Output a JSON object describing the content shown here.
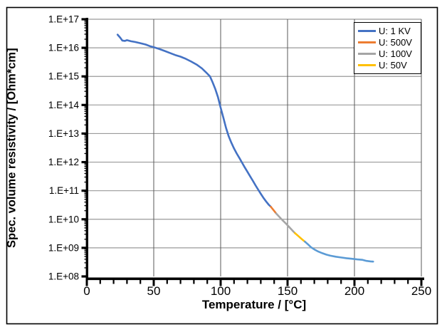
{
  "figure": {
    "background": "#ffffff",
    "border_color": "#000000"
  },
  "chart_data": {
    "type": "line",
    "title": "",
    "xlabel": "Temperature / [°C]",
    "ylabel": "Spec. volume resistivity / [Ohm*cm]",
    "x_axis": {
      "min": 0,
      "max": 250,
      "major_tick": 50,
      "minor_tick": 10,
      "tick_labels": [
        "0",
        "50",
        "100",
        "150",
        "200",
        "250"
      ]
    },
    "y_axis": {
      "scale": "log",
      "min": 100000000.0,
      "max": 1e+17,
      "tick_labels": [
        "1.E+08",
        "1.E+09",
        "1.E+10",
        "1.E+11",
        "1.E+12",
        "1.E+13",
        "1.E+14",
        "1.E+15",
        "1.E+16",
        "1.E+17"
      ]
    },
    "grid": {
      "horizontal": true,
      "vertical": true,
      "h_color": "#9a9a9a",
      "v_color": "#595959"
    },
    "legend": {
      "position": "top-right",
      "items": [
        {
          "label": "U: 1 KV",
          "color": "#4472C4"
        },
        {
          "label": "U: 500V",
          "color": "#ED7D31"
        },
        {
          "label": "U: 100V",
          "color": "#A5A5A5"
        },
        {
          "label": "U: 50V",
          "color": "#FFC000"
        }
      ]
    },
    "series": [
      {
        "name": "U: 1 KV",
        "color": "#4472C4",
        "points": [
          [
            23,
            2.9e+16
          ],
          [
            25,
            2.25e+16
          ],
          [
            26.5,
            1.8e+16
          ],
          [
            28.5,
            1.75e+16
          ],
          [
            30,
            1.85e+16
          ],
          [
            33,
            1.7e+16
          ],
          [
            36,
            1.6e+16
          ],
          [
            40,
            1.45e+16
          ],
          [
            44,
            1.3e+16
          ],
          [
            47,
            1.15e+16
          ],
          [
            50,
            1.05e+16
          ],
          [
            54,
            9200000000000000.0
          ],
          [
            58,
            7800000000000000.0
          ],
          [
            62,
            6600000000000000.0
          ],
          [
            66,
            5600000000000000.0
          ],
          [
            70,
            4900000000000000.0
          ],
          [
            74,
            4100000000000000.0
          ],
          [
            78,
            3300000000000000.0
          ],
          [
            82,
            2600000000000000.0
          ],
          [
            86,
            1900000000000000.0
          ],
          [
            89,
            1400000000000000.0
          ],
          [
            92,
            1000000000000000.0
          ],
          [
            94,
            620000000000000.0
          ],
          [
            96,
            360000000000000.0
          ],
          [
            98,
            190000000000000.0
          ],
          [
            100,
            80000000000000.0
          ],
          [
            102,
            36000000000000.0
          ],
          [
            104,
            16000000000000.0
          ],
          [
            106,
            8000000000000.0
          ],
          [
            108,
            4800000000000.0
          ],
          [
            110,
            3000000000000.0
          ],
          [
            112,
            2000000000000.0
          ],
          [
            114,
            1400000000000.0
          ],
          [
            116,
            950000000000.0
          ],
          [
            118,
            660000000000.0
          ],
          [
            120,
            460000000000.0
          ],
          [
            122,
            320000000000.0
          ],
          [
            124,
            225000000000.0
          ],
          [
            126,
            155000000000.0
          ],
          [
            128,
            110000000000.0
          ],
          [
            130,
            78000000000.0
          ],
          [
            132,
            56000000000.0
          ],
          [
            134,
            42000000000.0
          ],
          [
            136,
            32000000000.0
          ],
          [
            137.5,
            27500000000.0
          ]
        ]
      },
      {
        "name": "U: 500V",
        "color": "#ED7D31",
        "points": [
          [
            137.5,
            27500000000.0
          ],
          [
            139.5,
            21000000000.0
          ],
          [
            141.5,
            16000000000.0
          ]
        ]
      },
      {
        "name": "U: 100V",
        "color": "#A5A5A5",
        "points": [
          [
            141.5,
            16000000000.0
          ],
          [
            144,
            12000000000.0
          ],
          [
            146.5,
            9000000000.0
          ],
          [
            149,
            6900000000.0
          ],
          [
            151.5,
            5200000000.0
          ],
          [
            153.5,
            4100000000.0
          ],
          [
            155.5,
            3300000000.0
          ]
        ]
      },
      {
        "name": "U: 50V",
        "color": "#FFC000",
        "points": [
          [
            155.5,
            3300000000.0
          ],
          [
            158,
            2600000000.0
          ],
          [
            160.5,
            2050000000.0
          ],
          [
            163,
            1650000000.0
          ]
        ]
      },
      {
        "name": "",
        "color": "#5B9BD5",
        "points": [
          [
            163,
            1650000000.0
          ],
          [
            165.5,
            1300000000.0
          ],
          [
            167.5,
            1050000000.0
          ],
          [
            170,
            880000000.0
          ],
          [
            173,
            740000000.0
          ],
          [
            176,
            650000000.0
          ],
          [
            179,
            580000000.0
          ],
          [
            182,
            530000000.0
          ],
          [
            186,
            490000000.0
          ],
          [
            190,
            460000000.0
          ],
          [
            194,
            435000000.0
          ],
          [
            198,
            415000000.0
          ],
          [
            202,
            395000000.0
          ],
          [
            206,
            380000000.0
          ],
          [
            209,
            350000000.0
          ],
          [
            212,
            335000000.0
          ],
          [
            214,
            330000000.0
          ]
        ]
      }
    ]
  }
}
